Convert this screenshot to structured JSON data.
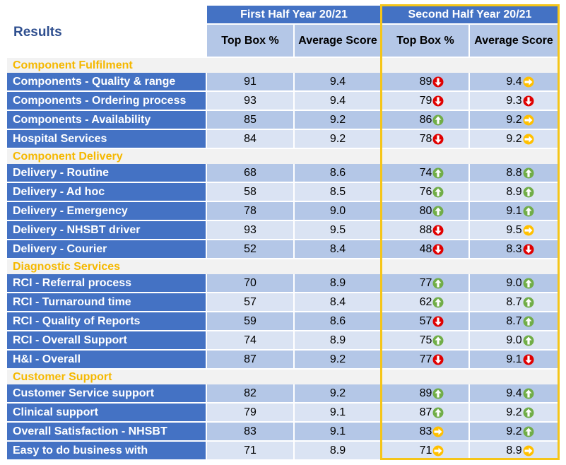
{
  "title": "Results",
  "header": {
    "first_half": "First Half Year 20/21",
    "second_half": "Second Half Year 20/21",
    "top_box": "Top Box %",
    "average_score": "Average Score"
  },
  "colors": {
    "label_bg": "#4472c4",
    "section_text": "#f5b800",
    "highlight_border": "#f5c518",
    "up": "#70ad47",
    "down": "#e00000",
    "flat": "#ffc000"
  },
  "sections": [
    {
      "name": "Component Fulfilment",
      "rows": [
        {
          "label": "Components - Quality & range",
          "h1_top": "91",
          "h1_avg": "9.4",
          "h2_top": "89",
          "h2_top_trend": "down",
          "h2_avg": "9.4",
          "h2_avg_trend": "flat"
        },
        {
          "label": "Components - Ordering process",
          "h1_top": "93",
          "h1_avg": "9.4",
          "h2_top": "79",
          "h2_top_trend": "down",
          "h2_avg": "9.3",
          "h2_avg_trend": "down"
        },
        {
          "label": "Components - Availability",
          "h1_top": "85",
          "h1_avg": "9.2",
          "h2_top": "86",
          "h2_top_trend": "up",
          "h2_avg": "9.2",
          "h2_avg_trend": "flat"
        },
        {
          "label": "Hospital Services",
          "h1_top": "84",
          "h1_avg": "9.2",
          "h2_top": "78",
          "h2_top_trend": "down",
          "h2_avg": "9.2",
          "h2_avg_trend": "flat"
        }
      ]
    },
    {
      "name": "Component Delivery",
      "rows": [
        {
          "label": "Delivery - Routine",
          "h1_top": "68",
          "h1_avg": "8.6",
          "h2_top": "74",
          "h2_top_trend": "up",
          "h2_avg": "8.8",
          "h2_avg_trend": "up"
        },
        {
          "label": "Delivery - Ad hoc",
          "h1_top": "58",
          "h1_avg": "8.5",
          "h2_top": "76",
          "h2_top_trend": "up",
          "h2_avg": "8.9",
          "h2_avg_trend": "up"
        },
        {
          "label": "Delivery - Emergency",
          "h1_top": "78",
          "h1_avg": "9.0",
          "h2_top": "80",
          "h2_top_trend": "up",
          "h2_avg": "9.1",
          "h2_avg_trend": "up"
        },
        {
          "label": "Delivery - NHSBT driver",
          "h1_top": "93",
          "h1_avg": "9.5",
          "h2_top": "88",
          "h2_top_trend": "down",
          "h2_avg": "9.5",
          "h2_avg_trend": "flat"
        },
        {
          "label": "Delivery - Courier",
          "h1_top": "52",
          "h1_avg": "8.4",
          "h2_top": "48",
          "h2_top_trend": "down",
          "h2_avg": "8.3",
          "h2_avg_trend": "down"
        }
      ]
    },
    {
      "name": "Diagnostic Services",
      "rows": [
        {
          "label": "RCI - Referral process",
          "h1_top": "70",
          "h1_avg": "8.9",
          "h2_top": "77",
          "h2_top_trend": "up",
          "h2_avg": "9.0",
          "h2_avg_trend": "up"
        },
        {
          "label": "RCI - Turnaround time",
          "h1_top": "57",
          "h1_avg": "8.4",
          "h2_top": "62",
          "h2_top_trend": "up",
          "h2_avg": "8.7",
          "h2_avg_trend": "up"
        },
        {
          "label": "RCI - Quality of Reports",
          "h1_top": "59",
          "h1_avg": "8.6",
          "h2_top": "57",
          "h2_top_trend": "down",
          "h2_avg": "8.7",
          "h2_avg_trend": "up"
        },
        {
          "label": "RCI - Overall Support",
          "h1_top": "74",
          "h1_avg": "8.9",
          "h2_top": "75",
          "h2_top_trend": "up",
          "h2_avg": "9.0",
          "h2_avg_trend": "up"
        },
        {
          "label": "H&I - Overall",
          "h1_top": "87",
          "h1_avg": "9.2",
          "h2_top": "77",
          "h2_top_trend": "down",
          "h2_avg": "9.1",
          "h2_avg_trend": "down"
        }
      ]
    },
    {
      "name": "Customer Support",
      "rows": [
        {
          "label": "Customer Service support",
          "h1_top": "82",
          "h1_avg": "9.2",
          "h2_top": "89",
          "h2_top_trend": "up",
          "h2_avg": "9.4",
          "h2_avg_trend": "up"
        },
        {
          "label": "Clinical support",
          "h1_top": "79",
          "h1_avg": "9.1",
          "h2_top": "87",
          "h2_top_trend": "up",
          "h2_avg": "9.2",
          "h2_avg_trend": "up"
        },
        {
          "label": "Overall Satisfaction - NHSBT",
          "h1_top": "83",
          "h1_avg": "9.1",
          "h2_top": "83",
          "h2_top_trend": "flat",
          "h2_avg": "9.2",
          "h2_avg_trend": "up"
        },
        {
          "label": "Easy to do business with",
          "h1_top": "71",
          "h1_avg": "8.9",
          "h2_top": "71",
          "h2_top_trend": "flat",
          "h2_avg": "8.9",
          "h2_avg_trend": "flat"
        }
      ]
    }
  ]
}
